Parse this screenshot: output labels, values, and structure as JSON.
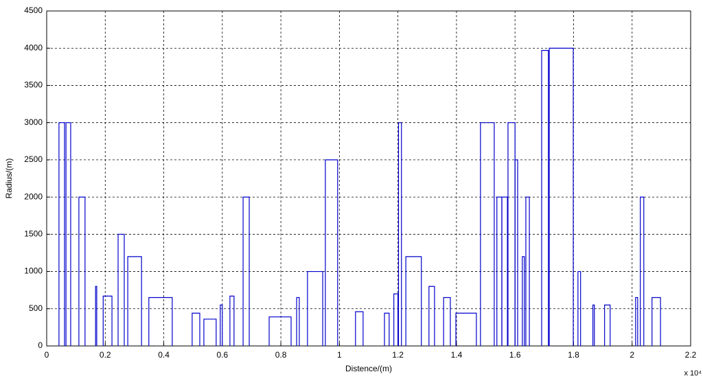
{
  "chart_data": {
    "type": "bar",
    "x_label": "Distence/(m)",
    "y_label": "Radius/(m)",
    "x_multiplier": "x 10⁴",
    "x_start": [
      0.042,
      0.066,
      0.11,
      0.167,
      0.193,
      0.244,
      0.277,
      0.349,
      0.497,
      0.537,
      0.593,
      0.626,
      0.671,
      0.76,
      0.854,
      0.891,
      0.952,
      1.055,
      1.154,
      1.186,
      1.202,
      1.227,
      1.306,
      1.356,
      1.398,
      1.482,
      1.538,
      1.555,
      1.576,
      1.6,
      1.625,
      1.637,
      1.691,
      1.717,
      1.815,
      1.866,
      1.906,
      2.012,
      2.028,
      2.068
    ],
    "x_end": [
      0.061,
      0.082,
      0.131,
      0.171,
      0.223,
      0.265,
      0.324,
      0.429,
      0.523,
      0.579,
      0.6,
      0.64,
      0.692,
      0.835,
      0.863,
      0.943,
      0.994,
      1.081,
      1.17,
      1.2,
      1.212,
      1.28,
      1.325,
      1.379,
      1.468,
      1.529,
      1.555,
      1.574,
      1.6,
      1.609,
      1.632,
      1.649,
      1.714,
      1.799,
      1.824,
      1.871,
      1.925,
      2.019,
      2.04,
      2.097
    ],
    "values": [
      3000,
      3000,
      2000,
      800,
      670,
      1500,
      1200,
      650,
      440,
      360,
      550,
      670,
      2000,
      390,
      650,
      1000,
      2500,
      460,
      440,
      700,
      3000,
      1200,
      800,
      650,
      440,
      3000,
      2000,
      2000,
      3000,
      2500,
      1200,
      2000,
      3970,
      4000,
      1000,
      550,
      550,
      650,
      2000,
      650
    ],
    "color": "#0000cc",
    "xlim": [
      0,
      2.2
    ],
    "xticks": [
      0,
      0.2,
      0.4,
      0.6,
      0.8,
      1,
      1.2,
      1.4,
      1.6,
      1.8,
      2,
      2.2
    ],
    "ylim": [
      0,
      4500
    ],
    "yticks": [
      0,
      500,
      1000,
      1500,
      2000,
      2500,
      3000,
      3500,
      4000,
      4500
    ],
    "grid": true
  }
}
